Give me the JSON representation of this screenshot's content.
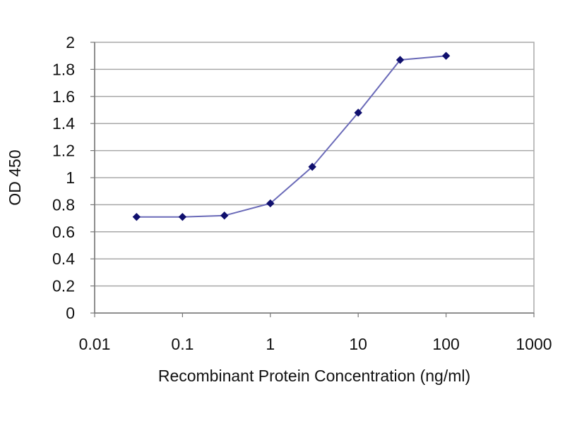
{
  "chart_data": {
    "type": "line",
    "title": "",
    "xlabel": "Recombinant Protein Concentration (ng/ml)",
    "ylabel": "OD 450",
    "xscale": "log",
    "xlim": [
      0.01,
      1000
    ],
    "ylim": [
      0,
      2
    ],
    "x_ticks": [
      "0.01",
      "0.1",
      "1",
      "10",
      "100",
      "1000"
    ],
    "y_ticks": [
      "0",
      "0.2",
      "0.4",
      "0.6",
      "0.8",
      "1",
      "1.2",
      "1.4",
      "1.6",
      "1.8",
      "2"
    ],
    "grid": "horizontal",
    "legend": "none",
    "series": [
      {
        "x": [
          0.03,
          0.1,
          0.3,
          1,
          3,
          10,
          30,
          100
        ],
        "y": [
          0.71,
          0.71,
          0.72,
          0.81,
          1.08,
          1.48,
          1.87,
          1.9
        ]
      }
    ],
    "colors": {
      "line": "#6a6ab8",
      "marker": "#10106e",
      "grid": "#a8a8a8",
      "frame": "#a8a8a8",
      "axis": "#777777"
    }
  }
}
